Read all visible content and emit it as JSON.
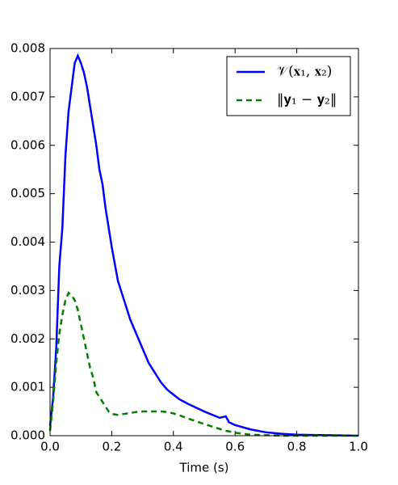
{
  "chart_data": {
    "type": "line",
    "x_label": "Time (s)",
    "x": [
      0,
      0.01,
      0.02,
      0.03,
      0.04,
      0.05,
      0.06,
      0.07,
      0.08,
      0.09,
      0.1,
      0.11,
      0.12,
      0.13,
      0.14,
      0.15,
      0.16,
      0.17,
      0.18,
      0.19,
      0.2,
      0.22,
      0.24,
      0.26,
      0.28,
      0.3,
      0.32,
      0.34,
      0.36,
      0.38,
      0.4,
      0.42,
      0.45,
      0.5,
      0.55,
      0.57,
      0.58,
      0.6,
      0.65,
      0.7,
      0.75,
      0.8,
      0.9,
      1.0
    ],
    "series": [
      {
        "name": "𝒱(𝐱₁, 𝐱₂)",
        "color": "#0000ff",
        "linestyle": "solid",
        "values": [
          0.0002,
          0.0008,
          0.0018,
          0.0035,
          0.0043,
          0.0058,
          0.0067,
          0.0072,
          0.0077,
          0.00785,
          0.0077,
          0.0075,
          0.0072,
          0.0068,
          0.0064,
          0.006,
          0.0055,
          0.0052,
          0.0047,
          0.0043,
          0.0039,
          0.0032,
          0.0028,
          0.0024,
          0.0021,
          0.0018,
          0.0015,
          0.0013,
          0.0011,
          0.00095,
          0.00085,
          0.00075,
          0.00065,
          0.0005,
          0.00037,
          0.0004,
          0.00028,
          0.00022,
          0.00013,
          7e-05,
          4e-05,
          2e-05,
          1e-05,
          0
        ]
      },
      {
        "name": "‖𝐲₁ − 𝐲₂‖",
        "color": "#008000",
        "linestyle": "dashed",
        "values": [
          0.0001,
          0.0007,
          0.0015,
          0.0021,
          0.0025,
          0.0028,
          0.00295,
          0.0029,
          0.0028,
          0.0026,
          0.0023,
          0.002,
          0.0017,
          0.0014,
          0.0012,
          0.0009,
          0.0008,
          0.0007,
          0.0006,
          0.0005,
          0.00045,
          0.00043,
          0.00045,
          0.00047,
          0.00049,
          0.0005,
          0.0005,
          0.0005,
          0.0005,
          0.00049,
          0.00046,
          0.00042,
          0.00035,
          0.00024,
          0.00014,
          0.0001,
          9e-05,
          6e-05,
          2e-05,
          1e-05,
          0,
          0,
          0,
          0
        ]
      }
    ],
    "xlim": [
      0,
      1.0
    ],
    "xticks": [
      {
        "value": 0,
        "label": "0.0"
      },
      {
        "value": 0.2,
        "label": "0.2"
      },
      {
        "value": 0.4,
        "label": "0.4"
      },
      {
        "value": 0.6,
        "label": "0.6"
      },
      {
        "value": 0.8,
        "label": "0.8"
      },
      {
        "value": 1.0,
        "label": "1.0"
      }
    ],
    "ylim": [
      0,
      0.008
    ],
    "yticks": [
      {
        "value": 0,
        "label": "0.000"
      },
      {
        "value": 0.001,
        "label": "0.001"
      },
      {
        "value": 0.002,
        "label": "0.002"
      },
      {
        "value": 0.003,
        "label": "0.003"
      },
      {
        "value": 0.004,
        "label": "0.004"
      },
      {
        "value": 0.005,
        "label": "0.005"
      },
      {
        "value": 0.006,
        "label": "0.006"
      },
      {
        "value": 0.007,
        "label": "0.007"
      },
      {
        "value": 0.008,
        "label": "0.008"
      }
    ],
    "grid": false,
    "legend": "upper right"
  }
}
